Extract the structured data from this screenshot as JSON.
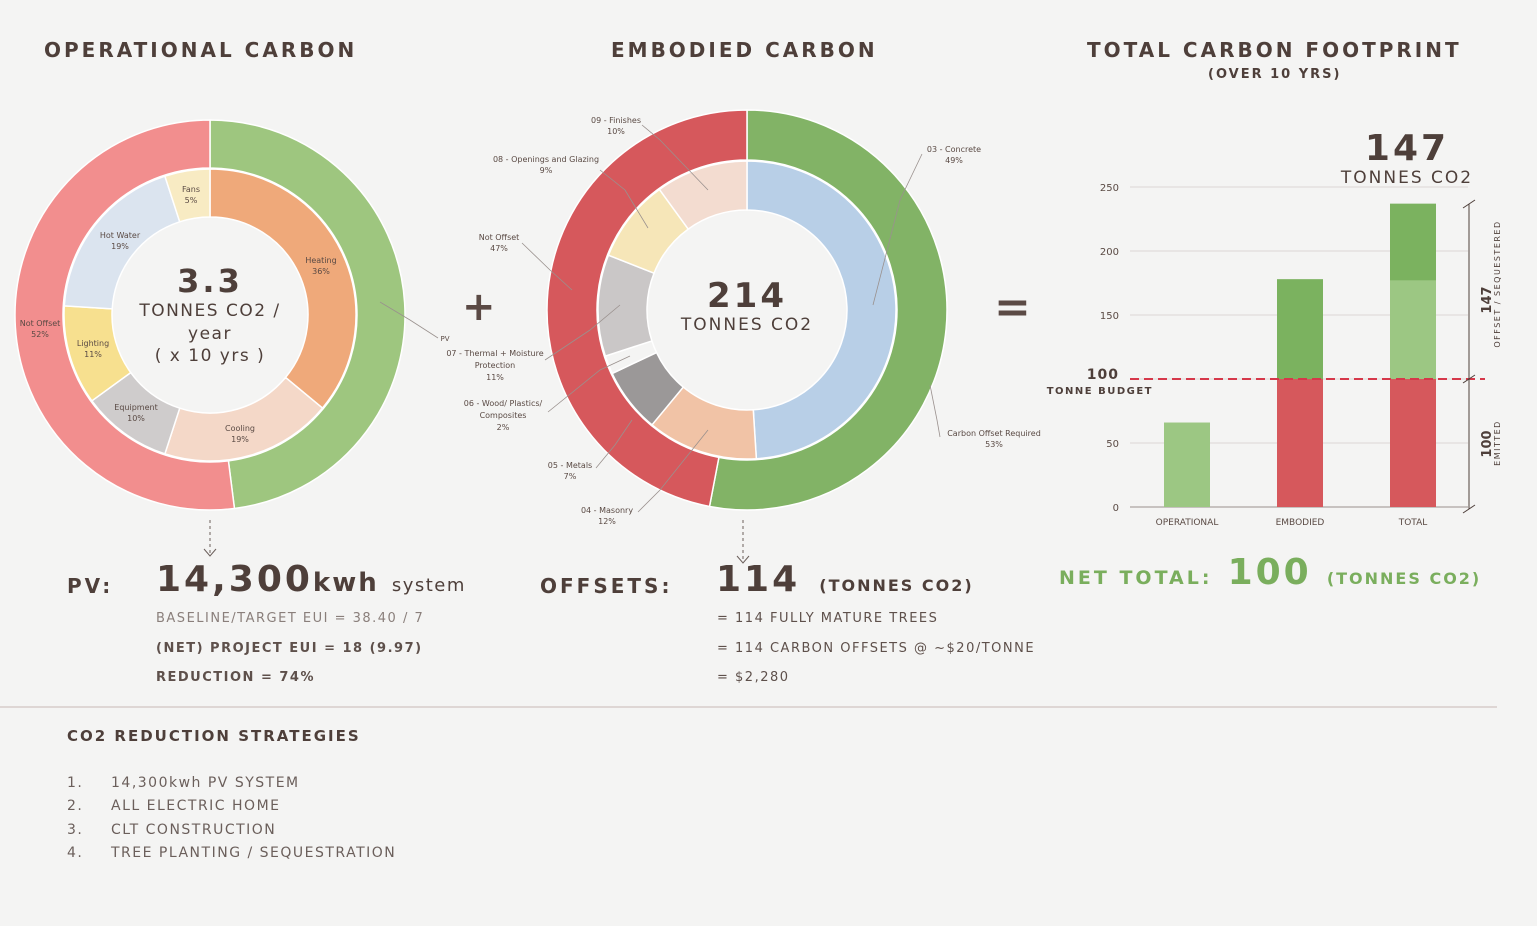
{
  "headings": {
    "operational": "OPERATIONAL CARBON",
    "embodied": "EMBODIED CARBON",
    "total": "TOTAL CARBON FOOTPRINT",
    "total_sub": "(OVER 10 YRS)"
  },
  "operators": {
    "plus": "+",
    "equals": "="
  },
  "chart_data": [
    {
      "type": "pie",
      "title": "Operational Carbon",
      "center": {
        "value": "3.3",
        "line1": "TONNES CO2 /",
        "line2": "year",
        "line3": "( x 10 yrs )"
      },
      "inner": [
        {
          "label": "Heating",
          "pct": "36%",
          "value": 36,
          "color": "#efa97a"
        },
        {
          "label": "Cooling",
          "pct": "19%",
          "value": 19,
          "color": "#f4d8c8"
        },
        {
          "label": "Equipment",
          "pct": "10%",
          "value": 10,
          "color": "#cfcccc"
        },
        {
          "label": "Lighting",
          "pct": "11%",
          "value": 11,
          "color": "#f7e08f"
        },
        {
          "label": "Hot Water",
          "pct": "19%",
          "value": 19,
          "color": "#dbe4ef"
        },
        {
          "label": "Fans",
          "pct": "5%",
          "value": 5,
          "color": "#f8ebc3"
        }
      ],
      "outer": [
        {
          "label": "PV",
          "value": 48,
          "color": "#9ec67f"
        },
        {
          "label": "Not Offset",
          "pct": "52%",
          "value": 52,
          "color": "#f28e8e"
        }
      ],
      "outer_label_pv": "PV",
      "outer_label_not_offset": "Not Offset",
      "outer_label_not_offset_pct": "52%"
    },
    {
      "type": "pie",
      "title": "Embodied Carbon",
      "center": {
        "value": "214",
        "line1": "TONNES CO2"
      },
      "inner": [
        {
          "label": "03 - Concrete",
          "pct": "49%",
          "value": 49,
          "color": "#b8cfe7"
        },
        {
          "label": "04 - Masonry",
          "pct": "12%",
          "value": 12,
          "color": "#f1c3a6"
        },
        {
          "label": "05 - Metals",
          "pct": "7%",
          "value": 7,
          "color": "#9b9898"
        },
        {
          "label": "06 - Wood/ Plastics/ Composites",
          "pct": "2%",
          "value": 2,
          "color": "#f4f4f3"
        },
        {
          "label": "07 - Thermal + Moisture Protection",
          "pct": "11%",
          "value": 11,
          "color": "#cac7c7"
        },
        {
          "label": "08 - Openings and Glazing",
          "pct": "9%",
          "value": 9,
          "color": "#f6e6b8"
        },
        {
          "label": "09 - Finishes",
          "pct": "10%",
          "value": 10,
          "color": "#f3dcd0"
        }
      ],
      "outer": [
        {
          "label": "Carbon Offset Required",
          "pct": "53%",
          "value": 53,
          "color": "#82b366"
        },
        {
          "label": "Not Offset",
          "pct": "47%",
          "value": 47,
          "color": "#d6585c"
        }
      ],
      "labels": {
        "finishes": "09 - Finishes",
        "finishes_pct": "10%",
        "openings": "08 - Openings and Glazing",
        "openings_pct": "9%",
        "not_offset": "Not Offset",
        "not_offset_pct": "47%",
        "thermal_1": "07 - Thermal + Moisture",
        "thermal_2": "Protection",
        "thermal_pct": "11%",
        "wood_1": "06 - Wood/ Plastics/",
        "wood_2": "Composites",
        "wood_pct": "2%",
        "metals": "05 - Metals",
        "metals_pct": "7%",
        "masonry": "04 - Masonry",
        "masonry_pct": "12%",
        "concrete": "03 - Concrete",
        "concrete_pct": "49%",
        "offset_req": "Carbon Offset Required",
        "offset_req_pct": "53%"
      }
    },
    {
      "type": "bar",
      "title": "Total Carbon Footprint",
      "categories": [
        "OPERATIONAL",
        "EMBODIED",
        "TOTAL"
      ],
      "ylim": [
        0,
        250
      ],
      "yticks": [
        "0",
        "50",
        "100",
        "150",
        "200",
        "250"
      ],
      "budget": 100,
      "budget_label_value": "100",
      "budget_label_text": "TONNE BUDGET",
      "top_value": "147",
      "top_unit": "TONNES CO2",
      "series": [
        {
          "name": "emitted",
          "values": [
            0,
            100,
            100
          ]
        },
        {
          "name": "offset_dark",
          "values": [
            0,
            78,
            60
          ]
        },
        {
          "name": "offset_light",
          "values": [
            66,
            0,
            77
          ]
        }
      ],
      "bracket_top_value": "147",
      "bracket_top_label": "OFFSET / SEQUESTERED",
      "bracket_bottom_value": "100",
      "bracket_bottom_label": "EMITTED"
    }
  ],
  "pv": {
    "label": "PV:",
    "value": "14,300",
    "unit": "kwh",
    "suffix": "system",
    "lines": [
      "BASELINE/TARGET EUI = 38.40 / 7",
      "(NET) PROJECT EUI = 18 (9.97)",
      "REDUCTION = 74%"
    ]
  },
  "offsets": {
    "label": "OFFSETS:",
    "value": "114",
    "unit": "(TONNES CO2)",
    "lines": [
      "= 114 FULLY MATURE TREES",
      "= 114 CARBON OFFSETS @ ~$20/TONNE",
      "= $2,280"
    ]
  },
  "net": {
    "label": "NET TOTAL:",
    "value": "100",
    "unit": "(TONNES CO2)"
  },
  "strategies": {
    "title": "CO2 REDUCTION STRATEGIES",
    "items": [
      {
        "num": "1.",
        "text": "14,300kwh PV SYSTEM"
      },
      {
        "num": "2.",
        "text": "ALL ELECTRIC HOME"
      },
      {
        "num": "3.",
        "text": "CLT CONSTRUCTION"
      },
      {
        "num": "4.",
        "text": "TREE PLANTING / SEQUESTRATION"
      }
    ]
  }
}
